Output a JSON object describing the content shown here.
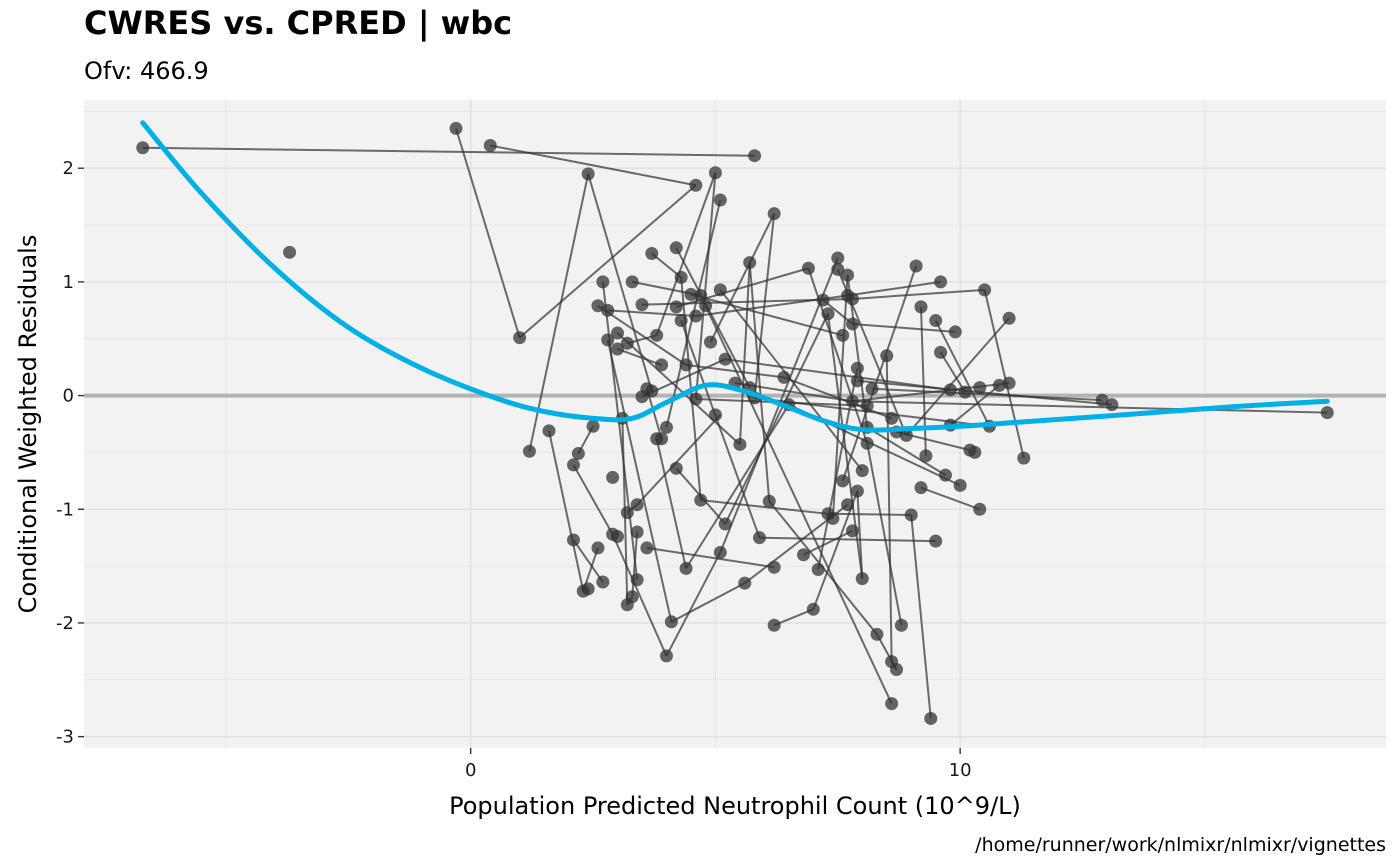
{
  "chart_data": {
    "type": "scatter",
    "title": "CWRES vs. CPRED | wbc",
    "subtitle": "Ofv: 466.9",
    "xlabel": "Population Predicted Neutrophil Count (10^9/L)",
    "ylabel": "Conditional Weighted Residuals",
    "caption": "/home/runner/work/nlmixr/nlmixr/vignettes",
    "xlim": [
      -7.9,
      18.7
    ],
    "ylim": [
      -3.1,
      2.6
    ],
    "x_ticks": [
      0,
      10
    ],
    "x_tick_labels": [
      "0",
      "10"
    ],
    "y_ticks": [
      2,
      1,
      0,
      -1,
      -2,
      -3
    ],
    "y_tick_labels": [
      "2",
      "1",
      "0",
      "-1",
      "-2",
      "-3"
    ],
    "grid": true,
    "reference_line": {
      "y": 0,
      "color": "#b3b3b3"
    },
    "colors": {
      "panel": "#f2f2f2",
      "grid": "#e0e0e0",
      "points": "#333333",
      "smooth": "#00b0e6"
    },
    "points": [
      [
        -6.7,
        2.18
      ],
      [
        -3.7,
        1.26
      ],
      [
        -0.3,
        2.35
      ],
      [
        0.4,
        2.2
      ],
      [
        1.0,
        0.51
      ],
      [
        1.2,
        -0.49
      ],
      [
        1.6,
        -0.31
      ],
      [
        2.1,
        -1.27
      ],
      [
        2.1,
        -0.61
      ],
      [
        2.2,
        -0.51
      ],
      [
        2.3,
        -1.72
      ],
      [
        2.4,
        -1.7
      ],
      [
        2.4,
        1.95
      ],
      [
        2.5,
        -0.27
      ],
      [
        2.6,
        -1.34
      ],
      [
        2.6,
        0.79
      ],
      [
        2.7,
        -1.64
      ],
      [
        2.7,
        1.0
      ],
      [
        2.8,
        0.49
      ],
      [
        2.8,
        0.75
      ],
      [
        2.9,
        -0.72
      ],
      [
        2.9,
        -1.22
      ],
      [
        3.0,
        -1.24
      ],
      [
        3.0,
        0.55
      ],
      [
        3.0,
        0.41
      ],
      [
        3.1,
        -0.2
      ],
      [
        3.2,
        -1.03
      ],
      [
        3.2,
        0.46
      ],
      [
        3.2,
        -1.84
      ],
      [
        3.3,
        -1.77
      ],
      [
        3.3,
        1.0
      ],
      [
        3.4,
        -1.62
      ],
      [
        3.4,
        -1.2
      ],
      [
        3.4,
        -0.96
      ],
      [
        3.5,
        -0.01
      ],
      [
        3.5,
        0.8
      ],
      [
        3.6,
        0.06
      ],
      [
        3.6,
        -1.34
      ],
      [
        3.7,
        1.25
      ],
      [
        3.7,
        0.04
      ],
      [
        3.8,
        0.53
      ],
      [
        3.8,
        -0.38
      ],
      [
        3.9,
        -0.38
      ],
      [
        3.9,
        0.27
      ],
      [
        4.0,
        -2.29
      ],
      [
        4.0,
        -0.28
      ],
      [
        4.1,
        -1.99
      ],
      [
        4.2,
        1.3
      ],
      [
        4.2,
        -0.64
      ],
      [
        4.2,
        0.78
      ],
      [
        4.3,
        1.04
      ],
      [
        4.3,
        0.66
      ],
      [
        4.4,
        -1.52
      ],
      [
        4.4,
        0.27
      ],
      [
        4.5,
        0.89
      ],
      [
        4.6,
        1.85
      ],
      [
        4.6,
        0.7
      ],
      [
        4.6,
        -0.03
      ],
      [
        4.7,
        -0.92
      ],
      [
        4.7,
        0.88
      ],
      [
        4.8,
        0.79
      ],
      [
        4.9,
        0.47
      ],
      [
        5.0,
        1.96
      ],
      [
        5.0,
        -0.17
      ],
      [
        5.1,
        1.72
      ],
      [
        5.1,
        0.93
      ],
      [
        5.1,
        -1.38
      ],
      [
        5.2,
        0.32
      ],
      [
        5.2,
        -1.13
      ],
      [
        5.4,
        0.11
      ],
      [
        5.5,
        -0.43
      ],
      [
        5.6,
        -1.65
      ],
      [
        5.7,
        1.17
      ],
      [
        5.7,
        0.07
      ],
      [
        5.8,
        -0.02
      ],
      [
        5.8,
        2.11
      ],
      [
        5.9,
        -1.25
      ],
      [
        6.1,
        -0.93
      ],
      [
        6.2,
        -2.02
      ],
      [
        6.2,
        -1.51
      ],
      [
        6.2,
        1.6
      ],
      [
        6.4,
        0.16
      ],
      [
        6.5,
        -0.08
      ],
      [
        6.8,
        -1.4
      ],
      [
        6.9,
        1.12
      ],
      [
        7.0,
        -1.88
      ],
      [
        7.1,
        -1.53
      ],
      [
        7.2,
        0.84
      ],
      [
        7.3,
        -1.04
      ],
      [
        7.3,
        0.72
      ],
      [
        7.4,
        -1.08
      ],
      [
        7.5,
        1.21
      ],
      [
        7.5,
        1.11
      ],
      [
        7.6,
        0.53
      ],
      [
        7.6,
        -0.75
      ],
      [
        7.7,
        0.88
      ],
      [
        7.7,
        -0.96
      ],
      [
        7.7,
        1.06
      ],
      [
        7.8,
        0.85
      ],
      [
        7.8,
        0.63
      ],
      [
        7.8,
        -0.05
      ],
      [
        7.8,
        -1.19
      ],
      [
        7.9,
        0.24
      ],
      [
        7.9,
        -0.84
      ],
      [
        7.9,
        0.13
      ],
      [
        8.0,
        -1.61
      ],
      [
        8.0,
        -0.66
      ],
      [
        8.1,
        -0.28
      ],
      [
        8.1,
        -0.42
      ],
      [
        8.1,
        -0.09
      ],
      [
        8.2,
        0.06
      ],
      [
        8.3,
        -2.1
      ],
      [
        8.5,
        0.35
      ],
      [
        8.6,
        -2.34
      ],
      [
        8.6,
        -2.71
      ],
      [
        8.6,
        -0.2
      ],
      [
        8.7,
        -2.41
      ],
      [
        8.7,
        -0.32
      ],
      [
        8.8,
        -2.02
      ],
      [
        8.9,
        -0.35
      ],
      [
        9.0,
        -1.05
      ],
      [
        9.1,
        1.14
      ],
      [
        9.2,
        0.78
      ],
      [
        9.2,
        -0.81
      ],
      [
        9.3,
        -0.53
      ],
      [
        9.4,
        -2.84
      ],
      [
        9.5,
        -1.28
      ],
      [
        9.5,
        0.66
      ],
      [
        9.6,
        1.0
      ],
      [
        9.6,
        0.38
      ],
      [
        9.7,
        -0.7
      ],
      [
        9.8,
        0.05
      ],
      [
        9.8,
        -0.26
      ],
      [
        9.9,
        0.56
      ],
      [
        10.0,
        -0.79
      ],
      [
        10.1,
        0.03
      ],
      [
        10.2,
        -0.48
      ],
      [
        10.3,
        -0.5
      ],
      [
        10.4,
        0.07
      ],
      [
        10.4,
        -1.0
      ],
      [
        10.5,
        0.93
      ],
      [
        10.6,
        -0.27
      ],
      [
        10.8,
        0.09
      ],
      [
        11.0,
        0.11
      ],
      [
        11.0,
        0.68
      ],
      [
        11.3,
        -0.55
      ],
      [
        12.9,
        -0.04
      ],
      [
        13.1,
        -0.08
      ],
      [
        17.5,
        -0.15
      ]
    ],
    "connections": [
      [
        -6.7,
        2.18,
        5.8,
        2.11
      ],
      [
        -0.3,
        2.35,
        1.0,
        0.51
      ],
      [
        0.4,
        2.2,
        4.6,
        1.85
      ],
      [
        1.0,
        0.51,
        4.6,
        1.85
      ],
      [
        1.2,
        -0.49,
        2.4,
        1.95
      ],
      [
        2.4,
        1.95,
        3.7,
        0.04
      ],
      [
        1.6,
        -0.31,
        2.3,
        -1.72
      ],
      [
        2.3,
        -1.72,
        2.6,
        -1.34
      ],
      [
        2.1,
        -1.27,
        2.7,
        -1.64
      ],
      [
        2.2,
        -0.51,
        2.5,
        -0.27
      ],
      [
        2.1,
        -0.61,
        2.9,
        -1.22
      ],
      [
        2.9,
        -1.22,
        4.0,
        -2.29
      ],
      [
        4.0,
        -2.29,
        5.1,
        -1.38
      ],
      [
        2.6,
        0.79,
        4.4,
        0.27
      ],
      [
        4.4,
        0.27,
        6.4,
        0.16
      ],
      [
        2.8,
        0.49,
        4.1,
        -1.99
      ],
      [
        2.7,
        1.0,
        3.4,
        -1.62
      ],
      [
        2.8,
        0.75,
        4.6,
        0.7
      ],
      [
        4.6,
        0.7,
        7.7,
        0.88
      ],
      [
        3.0,
        0.55,
        5.5,
        -0.43
      ],
      [
        3.0,
        0.41,
        3.9,
        0.27
      ],
      [
        3.2,
        0.46,
        3.8,
        0.53
      ],
      [
        3.8,
        0.53,
        5.0,
        1.96
      ],
      [
        5.0,
        1.96,
        4.6,
        -0.03
      ],
      [
        3.1,
        -0.2,
        3.2,
        -1.84
      ],
      [
        3.2,
        -1.84,
        3.3,
        -1.77
      ],
      [
        3.3,
        -1.77,
        3.4,
        -1.2
      ],
      [
        3.2,
        -1.03,
        3.4,
        -0.96
      ],
      [
        3.4,
        -0.96,
        5.1,
        -0.17
      ],
      [
        3.3,
        1.0,
        4.7,
        0.88
      ],
      [
        3.5,
        0.8,
        7.8,
        0.85
      ],
      [
        3.5,
        -0.01,
        5.2,
        0.32
      ],
      [
        3.6,
        0.06,
        3.9,
        -0.38
      ],
      [
        3.6,
        -1.34,
        6.2,
        -1.51
      ],
      [
        3.7,
        1.25,
        4.3,
        1.04
      ],
      [
        4.3,
        1.04,
        4.7,
        -0.92
      ],
      [
        4.7,
        -0.92,
        7.3,
        -1.04
      ],
      [
        3.8,
        -0.38,
        4.4,
        -1.52
      ],
      [
        4.4,
        -1.52,
        6.5,
        -0.08
      ],
      [
        4.0,
        -0.28,
        5.1,
        1.72
      ],
      [
        4.1,
        -1.99,
        5.6,
        -1.65
      ],
      [
        4.2,
        1.3,
        5.7,
        0.07
      ],
      [
        4.2,
        -0.64,
        5.2,
        -1.13
      ],
      [
        4.2,
        0.78,
        6.9,
        1.12
      ],
      [
        4.3,
        0.66,
        5.9,
        -1.25
      ],
      [
        4.5,
        0.89,
        7.6,
        0.53
      ],
      [
        4.6,
        -0.03,
        8.1,
        -0.09
      ],
      [
        4.8,
        0.79,
        8.6,
        -2.71
      ],
      [
        4.9,
        0.47,
        6.2,
        1.6
      ],
      [
        6.2,
        1.6,
        5.8,
        -0.02
      ],
      [
        5.1,
        0.93,
        8.0,
        -0.66
      ],
      [
        5.1,
        -1.38,
        7.5,
        1.21
      ],
      [
        5.2,
        -1.13,
        7.3,
        0.72
      ],
      [
        5.4,
        0.11,
        7.8,
        -0.05
      ],
      [
        5.5,
        -0.43,
        5.7,
        1.17
      ],
      [
        5.6,
        -1.65,
        7.7,
        -0.96
      ],
      [
        5.7,
        1.17,
        6.1,
        -0.93
      ],
      [
        5.8,
        -0.02,
        10.6,
        -0.27
      ],
      [
        5.9,
        -1.25,
        9.5,
        -1.28
      ],
      [
        6.1,
        -0.93,
        8.3,
        -2.1
      ],
      [
        8.3,
        -2.1,
        8.7,
        -2.41
      ],
      [
        6.2,
        -2.02,
        7.0,
        -1.88
      ],
      [
        7.0,
        -1.88,
        7.9,
        -0.84
      ],
      [
        6.4,
        0.16,
        8.6,
        -0.2
      ],
      [
        6.5,
        -0.08,
        10.0,
        -0.79
      ],
      [
        6.8,
        -1.4,
        7.8,
        -1.19
      ],
      [
        6.9,
        1.12,
        8.1,
        -0.42
      ],
      [
        7.1,
        -1.53,
        7.9,
        0.24
      ],
      [
        7.2,
        0.84,
        7.8,
        0.63
      ],
      [
        7.3,
        -1.04,
        7.4,
        -1.08
      ],
      [
        7.4,
        -1.08,
        7.7,
        1.06
      ],
      [
        7.5,
        1.11,
        8.9,
        -0.35
      ],
      [
        7.6,
        -0.75,
        9.1,
        1.14
      ],
      [
        7.7,
        0.88,
        9.6,
        1.0
      ],
      [
        7.8,
        0.85,
        10.5,
        0.93
      ],
      [
        10.5,
        0.93,
        11.3,
        -0.55
      ],
      [
        7.8,
        0.63,
        9.9,
        0.56
      ],
      [
        7.9,
        0.13,
        13.1,
        -0.08
      ],
      [
        7.9,
        -0.84,
        8.0,
        -1.61
      ],
      [
        8.0,
        -1.61,
        7.3,
        0.72
      ],
      [
        8.1,
        -0.28,
        9.7,
        -0.7
      ],
      [
        8.1,
        -0.42,
        8.8,
        -2.02
      ],
      [
        8.2,
        0.06,
        12.9,
        -0.04
      ],
      [
        8.5,
        0.35,
        8.6,
        -2.34
      ],
      [
        8.6,
        -2.34,
        8.7,
        -2.41
      ],
      [
        8.7,
        -0.32,
        10.2,
        -0.48
      ],
      [
        8.9,
        -0.35,
        11.0,
        0.68
      ],
      [
        7.3,
        -1.04,
        9.0,
        -1.05
      ],
      [
        9.2,
        0.78,
        9.3,
        -0.53
      ],
      [
        9.2,
        -0.81,
        10.4,
        -1.0
      ],
      [
        9.4,
        -2.84,
        9.0,
        -1.05
      ],
      [
        9.5,
        0.66,
        10.6,
        -0.27
      ],
      [
        9.6,
        0.38,
        10.1,
        0.03
      ],
      [
        7.8,
        -0.05,
        11.0,
        0.11
      ],
      [
        9.8,
        -0.26,
        10.8,
        0.09
      ],
      [
        7.8,
        -0.05,
        17.5,
        -0.15
      ],
      [
        5.2,
        0.32,
        9.8,
        0.05
      ],
      [
        7.7,
        1.06,
        8.1,
        -0.28
      ]
    ],
    "smooth": [
      [
        -6.7,
        2.4
      ],
      [
        -5.5,
        1.78
      ],
      [
        -4.0,
        1.12
      ],
      [
        -2.5,
        0.6
      ],
      [
        -1.0,
        0.24
      ],
      [
        0.5,
        -0.02
      ],
      [
        1.5,
        -0.14
      ],
      [
        2.5,
        -0.2
      ],
      [
        3.3,
        -0.2
      ],
      [
        4.0,
        -0.06
      ],
      [
        4.8,
        0.09
      ],
      [
        5.5,
        0.05
      ],
      [
        6.3,
        -0.07
      ],
      [
        7.2,
        -0.22
      ],
      [
        8.0,
        -0.3
      ],
      [
        9.0,
        -0.29
      ],
      [
        10.0,
        -0.27
      ],
      [
        11.0,
        -0.24
      ],
      [
        13.0,
        -0.18
      ],
      [
        15.5,
        -0.1
      ],
      [
        17.5,
        -0.05
      ]
    ]
  }
}
